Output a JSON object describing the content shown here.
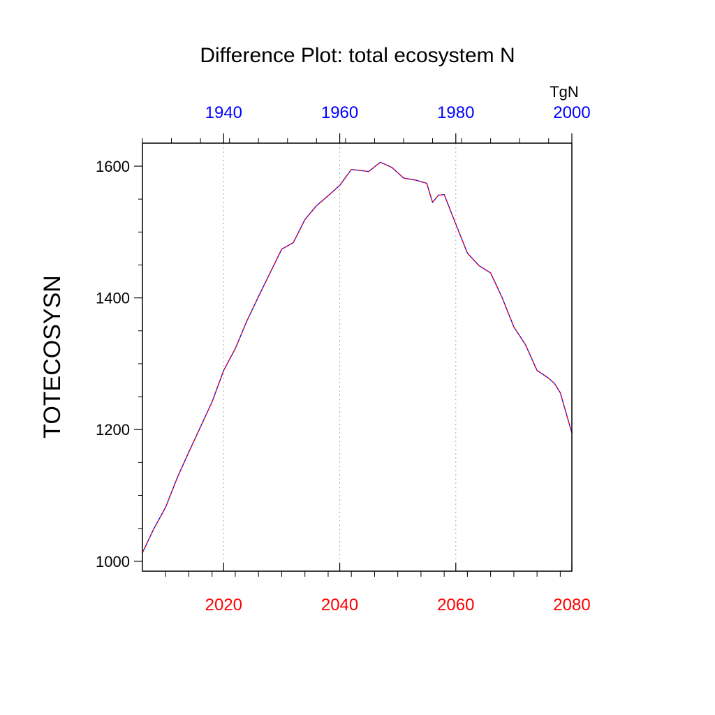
{
  "chart_data": {
    "type": "line",
    "title": "Difference Plot: total ecosystem N",
    "units": "TgN",
    "ylabel": "TOTECOSYSN",
    "xlabel": "",
    "xlim": [
      2006,
      2080
    ],
    "ylim": [
      985,
      1635
    ],
    "x_ticks_bottom": [
      "2020",
      "2040",
      "2060",
      "2080"
    ],
    "x_ticks_top": [
      "1940",
      "1960",
      "1980",
      "2000"
    ],
    "y_ticks": [
      "1000",
      "1200",
      "1400",
      "1600"
    ],
    "top_axis_offset_years": 80,
    "grid": "vertical dotted at major bottom ticks",
    "colors": {
      "line_primary": "#0000ff",
      "line_secondary": "#ff0000",
      "bottom_ticks": "#ff0000",
      "top_ticks": "#0000ff",
      "axes": "#000000",
      "grid": "#aaaaaa"
    },
    "series": [
      {
        "color": "#0000ff",
        "style": "solid",
        "x": [
          2006,
          2008,
          2010,
          2012,
          2014,
          2016,
          2018,
          2020,
          2022,
          2024,
          2026,
          2028,
          2030,
          2032,
          2034,
          2036,
          2038,
          2040,
          2042,
          2044,
          2045,
          2047,
          2049,
          2051,
          2053,
          2055,
          2056,
          2057,
          2058,
          2060,
          2062,
          2064,
          2066,
          2068,
          2070,
          2072,
          2074,
          2076,
          2077,
          2078,
          2080
        ],
        "y": [
          1013,
          1050,
          1082,
          1127,
          1166,
          1204,
          1242,
          1290,
          1323,
          1365,
          1402,
          1438,
          1474,
          1484,
          1519,
          1540,
          1555,
          1571,
          1595,
          1593,
          1592,
          1606,
          1598,
          1582,
          1579,
          1574,
          1545,
          1556,
          1557,
          1512,
          1468,
          1449,
          1438,
          1400,
          1356,
          1329,
          1290,
          1278,
          1270,
          1256,
          1195
        ]
      },
      {
        "color": "#ff0000",
        "style": "dashed",
        "x": [
          2006,
          2008,
          2010,
          2012,
          2014,
          2016,
          2018,
          2020,
          2022,
          2024,
          2026,
          2028,
          2030,
          2032,
          2034,
          2036,
          2038,
          2040,
          2042,
          2044,
          2045,
          2047,
          2049,
          2051,
          2053,
          2055,
          2056,
          2057,
          2058,
          2060,
          2062,
          2064,
          2066,
          2068,
          2070,
          2072,
          2074,
          2076,
          2077,
          2078,
          2080
        ],
        "y": [
          1013,
          1050,
          1082,
          1127,
          1166,
          1204,
          1242,
          1290,
          1323,
          1365,
          1402,
          1438,
          1474,
          1484,
          1519,
          1540,
          1555,
          1571,
          1595,
          1593,
          1592,
          1606,
          1598,
          1582,
          1579,
          1574,
          1545,
          1556,
          1557,
          1512,
          1468,
          1449,
          1438,
          1400,
          1356,
          1329,
          1290,
          1278,
          1270,
          1256,
          1195
        ]
      }
    ]
  }
}
